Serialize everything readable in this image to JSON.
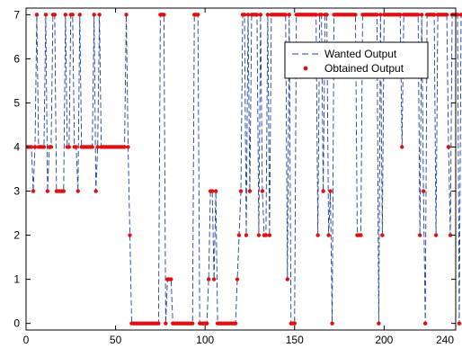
{
  "chart_data": {
    "type": "line",
    "title": "",
    "xlabel": "",
    "ylabel": "",
    "xlim": [
      0,
      240
    ],
    "ylim": [
      -0.15,
      7.15
    ],
    "xticks": [
      "0",
      "50",
      "100",
      "150",
      "200",
      "240"
    ],
    "yticks": [
      "0",
      "1",
      "2",
      "3",
      "4",
      "5",
      "6",
      "7"
    ],
    "grid": false,
    "legend_position": "top-right",
    "legend": [
      {
        "name": "Wanted Output",
        "style": "dashed line",
        "color": "#1f3f9a"
      },
      {
        "name": "Obtained Output",
        "style": "dot marker",
        "color": "#e01010"
      }
    ],
    "series": [
      {
        "name": "Wanted Output",
        "color": "#1f3f9a",
        "values": [
          4,
          4,
          4,
          3,
          4,
          7,
          4,
          4,
          4,
          4,
          7,
          3,
          4,
          4,
          7,
          7,
          3,
          3,
          3,
          3,
          3,
          7,
          4,
          4,
          7,
          7,
          4,
          4,
          3,
          7,
          4,
          4,
          4,
          4,
          4,
          4,
          4,
          7,
          3,
          4,
          7,
          4,
          4,
          4,
          4,
          4,
          4,
          4,
          4,
          4,
          4,
          4,
          4,
          4,
          4,
          7,
          4,
          2,
          0,
          0,
          0,
          0,
          0,
          0,
          0,
          0,
          0,
          0,
          0,
          0,
          0,
          0,
          0,
          0,
          7,
          7,
          7,
          0,
          1,
          1,
          1,
          0,
          0,
          0,
          0,
          0,
          0,
          0,
          0,
          0,
          0,
          0,
          0,
          7,
          7,
          7,
          0,
          0,
          0,
          0,
          0,
          1,
          3,
          3,
          1,
          3,
          0,
          0,
          0,
          0,
          0,
          0,
          0,
          0,
          0,
          0,
          0,
          1,
          2,
          3,
          7,
          7,
          2,
          7,
          3,
          7,
          7,
          7,
          7,
          2,
          7,
          3,
          2,
          2,
          7,
          2,
          7,
          7,
          7,
          7,
          7,
          7,
          7,
          7,
          7,
          1,
          7,
          0,
          0,
          0,
          7,
          7,
          7,
          7,
          7,
          7,
          7,
          7,
          7,
          7,
          7,
          7,
          2,
          7,
          7,
          3,
          7,
          7,
          2,
          3,
          0,
          7,
          7,
          7,
          7,
          7,
          7,
          7,
          7,
          7,
          7,
          7,
          7,
          7,
          2,
          2,
          2,
          7,
          7,
          7,
          7,
          7,
          7,
          7,
          7,
          7,
          0,
          7,
          2,
          7,
          7,
          7,
          7,
          7,
          7,
          7,
          7,
          7,
          7,
          4,
          7,
          7,
          7,
          7,
          7,
          7,
          7,
          7,
          7,
          2,
          7,
          3,
          0,
          7,
          7,
          7,
          7,
          7,
          2,
          7,
          7,
          7,
          7,
          7,
          7,
          4,
          2,
          7,
          7,
          7,
          7,
          0,
          7,
          7,
          7,
          7
        ]
      },
      {
        "name": "Obtained Output",
        "color": "#e01010",
        "values": [
          4,
          4,
          4,
          3,
          4,
          7,
          4,
          4,
          4,
          4,
          7,
          3,
          4,
          4,
          7,
          7,
          3,
          3,
          3,
          3,
          3,
          7,
          4,
          4,
          7,
          7,
          4,
          4,
          3,
          7,
          4,
          4,
          4,
          4,
          4,
          4,
          4,
          7,
          3,
          4,
          7,
          4,
          4,
          4,
          4,
          4,
          4,
          4,
          4,
          4,
          4,
          4,
          4,
          4,
          4,
          7,
          4,
          2,
          0,
          0,
          0,
          0,
          0,
          0,
          0,
          0,
          0,
          0,
          0,
          0,
          0,
          0,
          0,
          0,
          7,
          7,
          7,
          0,
          1,
          1,
          1,
          0,
          0,
          0,
          0,
          0,
          0,
          0,
          0,
          0,
          0,
          0,
          0,
          7,
          7,
          7,
          0,
          0,
          0,
          0,
          0,
          1,
          3,
          3,
          1,
          3,
          0,
          0,
          0,
          0,
          0,
          0,
          0,
          0,
          0,
          0,
          0,
          1,
          2,
          3,
          7,
          7,
          2,
          7,
          3,
          7,
          7,
          7,
          7,
          2,
          7,
          3,
          2,
          2,
          7,
          2,
          7,
          7,
          7,
          7,
          7,
          7,
          7,
          7,
          7,
          1,
          7,
          0,
          0,
          0,
          7,
          7,
          7,
          7,
          7,
          7,
          7,
          7,
          7,
          7,
          7,
          7,
          2,
          7,
          7,
          3,
          7,
          7,
          2,
          3,
          0,
          7,
          7,
          7,
          7,
          7,
          7,
          7,
          7,
          7,
          7,
          7,
          7,
          7,
          2,
          2,
          2,
          7,
          7,
          7,
          7,
          7,
          7,
          7,
          7,
          7,
          0,
          7,
          2,
          7,
          7,
          7,
          7,
          7,
          7,
          7,
          7,
          7,
          7,
          4,
          7,
          7,
          7,
          7,
          7,
          7,
          7,
          7,
          7,
          2,
          7,
          3,
          0,
          7,
          7,
          7,
          7,
          7,
          2,
          7,
          7,
          7,
          7,
          7,
          7,
          4,
          2,
          7,
          7,
          7,
          7,
          0,
          7,
          7,
          7,
          7
        ]
      }
    ]
  }
}
